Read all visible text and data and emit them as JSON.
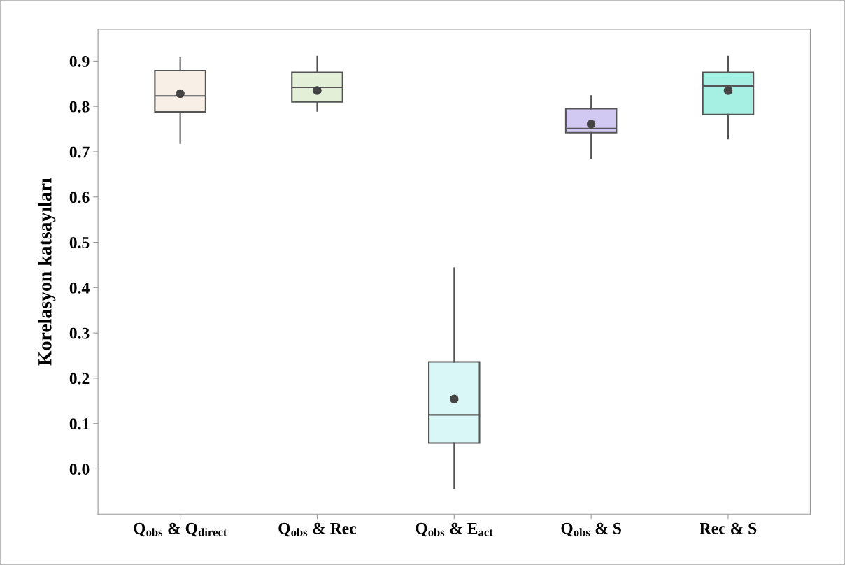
{
  "chart_data": {
    "type": "box",
    "ylabel": "Korelasyon katsayıları",
    "categories": [
      "Q$_{obs}$ & Q$_{direct}$",
      "Q$_{obs}$ & Rec",
      "Q$_{obs}$ & E$_{act}$",
      "Q$_{obs}$ & S",
      "Rec & S"
    ],
    "colors": [
      "#f8f0e6",
      "#e3efd6",
      "#d9f7f7",
      "#d2c9f3",
      "#a6efe3"
    ],
    "boxes": [
      {
        "low": 0.719,
        "q1": 0.788,
        "median": 0.823,
        "q3": 0.879,
        "high": 0.907,
        "mean": 0.828
      },
      {
        "low": 0.79,
        "q1": 0.81,
        "median": 0.842,
        "q3": 0.875,
        "high": 0.91,
        "mean": 0.835
      },
      {
        "low": -0.043,
        "q1": 0.057,
        "median": 0.119,
        "q3": 0.236,
        "high": 0.443,
        "mean": 0.154
      },
      {
        "low": 0.685,
        "q1": 0.742,
        "median": 0.751,
        "q3": 0.795,
        "high": 0.823,
        "mean": 0.761
      },
      {
        "low": 0.729,
        "q1": 0.782,
        "median": 0.845,
        "q3": 0.875,
        "high": 0.91,
        "mean": 0.835
      }
    ],
    "ylim": [
      -0.1,
      0.97
    ],
    "yticks": [
      {
        "value": 0.0,
        "label": "0.0"
      },
      0.1,
      0.2,
      0.3,
      0.4,
      0.5,
      0.6,
      0.7,
      0.8,
      0.9
    ],
    "grid": false,
    "legend": false
  }
}
